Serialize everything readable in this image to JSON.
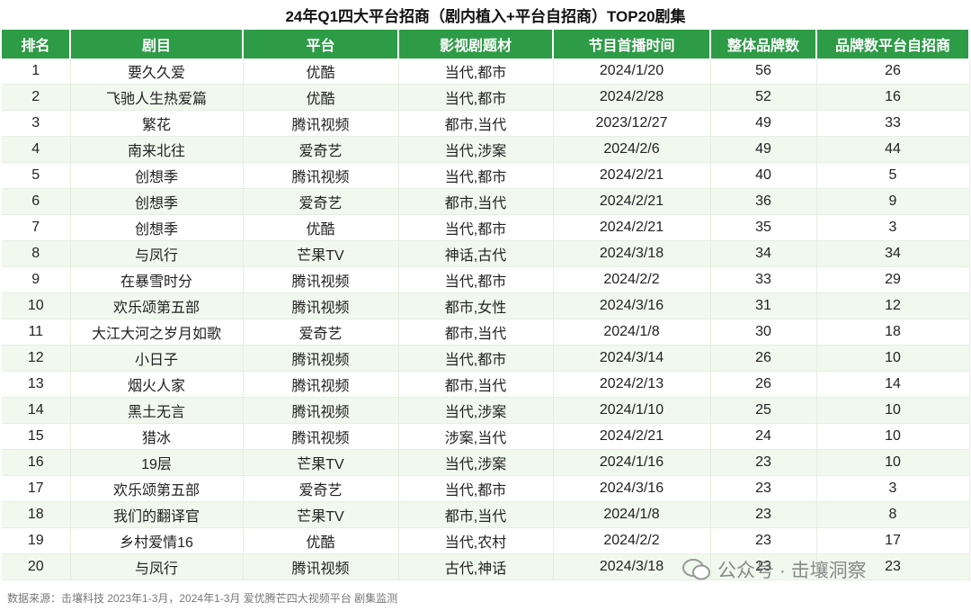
{
  "title": "24年Q1四大平台招商（剧内植入+平台自招商）TOP20剧集",
  "table": {
    "header": [
      "排名",
      "剧目",
      "平台",
      "影视剧题材",
      "节目首播时间",
      "整体品牌数",
      "品牌数平台自招商"
    ],
    "rows": [
      [
        1,
        "要久久爱",
        "优酷",
        "当代,都市",
        "2024/1/20",
        56,
        26
      ],
      [
        2,
        "飞驰人生热爱篇",
        "优酷",
        "当代,都市",
        "2024/2/28",
        52,
        16
      ],
      [
        3,
        "繁花",
        "腾讯视频",
        "都市,当代",
        "2023/12/27",
        49,
        33
      ],
      [
        4,
        "南来北往",
        "爱奇艺",
        "当代,涉案",
        "2024/2/6",
        49,
        44
      ],
      [
        5,
        "创想季",
        "腾讯视频",
        "当代,都市",
        "2024/2/21",
        40,
        5
      ],
      [
        6,
        "创想季",
        "爱奇艺",
        "都市,当代",
        "2024/2/21",
        36,
        9
      ],
      [
        7,
        "创想季",
        "优酷",
        "当代,都市",
        "2024/2/21",
        35,
        3
      ],
      [
        8,
        "与凤行",
        "芒果TV",
        "神话,古代",
        "2024/3/18",
        34,
        34
      ],
      [
        9,
        "在暴雪时分",
        "腾讯视频",
        "当代,都市",
        "2024/2/2",
        33,
        29
      ],
      [
        10,
        "欢乐颂第五部",
        "腾讯视频",
        "都市,女性",
        "2024/3/16",
        31,
        12
      ],
      [
        11,
        "大江大河之岁月如歌",
        "爱奇艺",
        "都市,当代",
        "2024/1/8",
        30,
        18
      ],
      [
        12,
        "小日子",
        "腾讯视频",
        "当代,都市",
        "2024/3/14",
        26,
        10
      ],
      [
        13,
        "烟火人家",
        "腾讯视频",
        "都市,当代",
        "2024/2/13",
        26,
        14
      ],
      [
        14,
        "黑土无言",
        "腾讯视频",
        "当代,涉案",
        "2024/1/10",
        25,
        10
      ],
      [
        15,
        "猎冰",
        "腾讯视频",
        "涉案,当代",
        "2024/2/21",
        24,
        10
      ],
      [
        16,
        "19层",
        "芒果TV",
        "当代,涉案",
        "2024/1/16",
        23,
        10
      ],
      [
        17,
        "欢乐颂第五部",
        "爱奇艺",
        "当代,都市",
        "2024/3/16",
        23,
        3
      ],
      [
        18,
        "我们的翻译官",
        "芒果TV",
        "都市,当代",
        "2024/1/8",
        23,
        8
      ],
      [
        19,
        "乡村爱情16",
        "优酷",
        "当代,农村",
        "2024/2/2",
        23,
        17
      ],
      [
        20,
        "与凤行",
        "腾讯视频",
        "古代,神话",
        "2024/3/18",
        23,
        23
      ]
    ]
  },
  "source": "数据来源：击壤科技 2023年1-3月，2024年1-3月 爱优腾芒四大视频平台 剧集监测",
  "watermark": "公众号 · 击壤洞察"
}
